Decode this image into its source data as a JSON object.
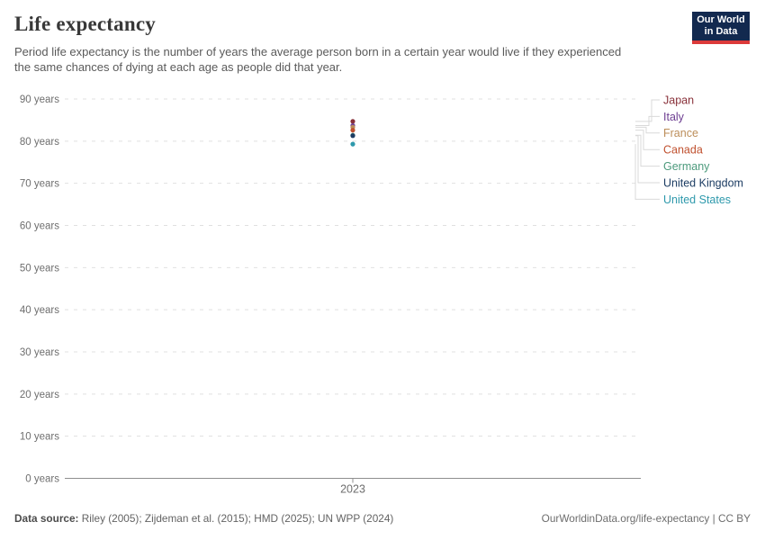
{
  "header": {
    "title": "Life expectancy",
    "subtitle": "Period life expectancy is the number of years the average person born in a certain year would live if they experienced the same chances of dying at each age as people did that year.",
    "logo": {
      "line1": "Our World",
      "line2": "in Data",
      "bg_color": "#12294f",
      "accent_color": "#dc3a3a"
    }
  },
  "chart_data": {
    "type": "scatter",
    "title": "Life expectancy",
    "xlabel": "",
    "ylabel": "",
    "x": [
      2023
    ],
    "x_tick_labels": [
      "2023"
    ],
    "ylim": [
      0,
      90
    ],
    "grid": "horizontal-dashed",
    "legend_position": "right",
    "y_ticks": [
      {
        "value": 0,
        "label": "0 years"
      },
      {
        "value": 10,
        "label": "10 years"
      },
      {
        "value": 20,
        "label": "20 years"
      },
      {
        "value": 30,
        "label": "30 years"
      },
      {
        "value": 40,
        "label": "40 years"
      },
      {
        "value": 50,
        "label": "50 years"
      },
      {
        "value": 60,
        "label": "60 years"
      },
      {
        "value": 70,
        "label": "70 years"
      },
      {
        "value": 80,
        "label": "80 years"
      },
      {
        "value": 90,
        "label": "90 years"
      }
    ],
    "series": [
      {
        "name": "Japan",
        "color": "#883039",
        "values": [
          84.7
        ]
      },
      {
        "name": "Italy",
        "color": "#6d3e91",
        "values": [
          83.7
        ]
      },
      {
        "name": "France",
        "color": "#bc8e5a",
        "values": [
          83.3
        ]
      },
      {
        "name": "Canada",
        "color": "#c0512f",
        "values": [
          82.6
        ]
      },
      {
        "name": "Germany",
        "color": "#4c9a7c",
        "values": [
          81.4
        ]
      },
      {
        "name": "United Kingdom",
        "color": "#1d3d63",
        "values": [
          81.3
        ]
      },
      {
        "name": "United States",
        "color": "#2e99ac",
        "values": [
          79.3
        ]
      }
    ]
  },
  "footer": {
    "source_label": "Data source:",
    "source_text": " Riley (2005); Zijdeman et al. (2015); HMD (2025); UN WPP (2024)",
    "link": "OurWorldinData.org/life-expectancy | CC BY"
  }
}
